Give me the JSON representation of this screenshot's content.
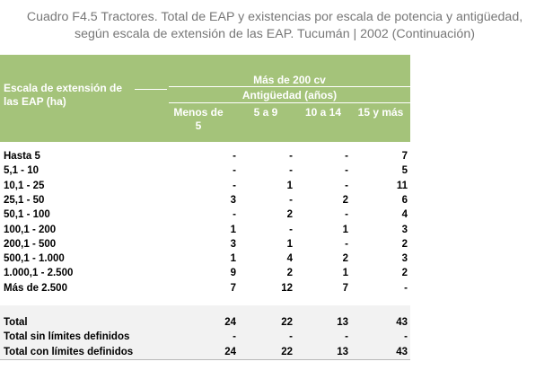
{
  "title": {
    "line1": "Cuadro F4.5 Tractores. Total de EAP y existencias por escala de potencia y antigüedad,",
    "line2": "según escala de extensión de las EAP.  Tucumán | 2002 (Continuación)"
  },
  "header": {
    "stub": "Escala de extensión de las EAP (ha)",
    "group": "Más de 200 cv",
    "subgroup": "Antigüedad (años)",
    "columns": [
      "Menos de 5",
      "5 a 9",
      "10 a 14",
      "15 y más"
    ]
  },
  "rows": [
    {
      "label": "Hasta 5",
      "values": [
        "-",
        "-",
        "-",
        "7"
      ]
    },
    {
      "label": "5,1 - 10",
      "values": [
        "-",
        "-",
        "-",
        "5"
      ]
    },
    {
      "label": "10,1 - 25",
      "values": [
        "-",
        "1",
        "-",
        "11"
      ]
    },
    {
      "label": "25,1 - 50",
      "values": [
        "3",
        "-",
        "2",
        "6"
      ]
    },
    {
      "label": "50,1 - 100",
      "values": [
        "-",
        "2",
        "-",
        "4"
      ]
    },
    {
      "label": "100,1 - 200",
      "values": [
        "1",
        "-",
        "1",
        "3"
      ]
    },
    {
      "label": "200,1 - 500",
      "values": [
        "3",
        "1",
        "-",
        "2"
      ]
    },
    {
      "label": "500,1 - 1.000",
      "values": [
        "1",
        "4",
        "2",
        "3"
      ]
    },
    {
      "label": "1.000,1 - 2.500",
      "values": [
        "9",
        "2",
        "1",
        "2"
      ]
    },
    {
      "label": "Más de 2.500",
      "values": [
        "7",
        "12",
        "7",
        "-"
      ]
    }
  ],
  "totals": [
    {
      "label": "Total",
      "values": [
        "24",
        "22",
        "13",
        "43"
      ]
    },
    {
      "label": "Total sin límites definidos",
      "values": [
        "-",
        "-",
        "-",
        "-"
      ]
    },
    {
      "label": "Total con límites definidos",
      "values": [
        "24",
        "22",
        "13",
        "43"
      ]
    }
  ],
  "colors": {
    "header_bg": "#a4c37a",
    "title": "#777777"
  }
}
